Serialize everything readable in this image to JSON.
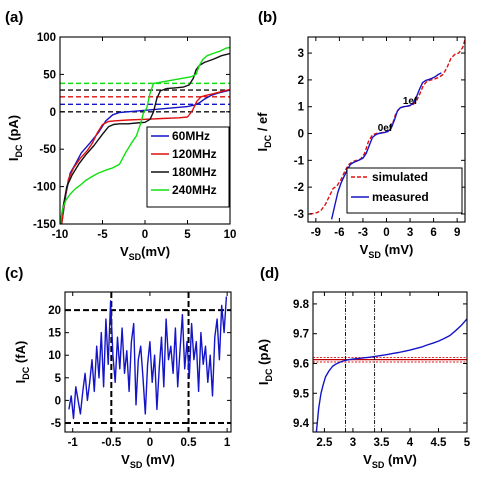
{
  "chart_data": [
    {
      "panel": "(a)",
      "type": "line",
      "xlabel": "V",
      "xlabel_sub": "SD",
      "xlabel_unit": "(mV)",
      "ylabel": "I",
      "ylabel_sub": "DC",
      "ylabel_unit": " (pA)",
      "xlim": [
        -10,
        10
      ],
      "ylim": [
        -150,
        100
      ],
      "xticks": [
        -10,
        -5,
        0,
        5,
        10
      ],
      "yticks": [
        -150,
        -100,
        -50,
        0,
        50,
        100
      ],
      "legend_position": "bottom-right",
      "series": [
        {
          "name": "60MHz",
          "color": "#1414c8",
          "x": [
            -9.8,
            -9.3,
            -8.8,
            -8.2,
            -7.5,
            -6.5,
            -5.5,
            -4.6,
            -3.8,
            -3.0,
            -2.0,
            -1.0,
            0.0,
            1.0,
            2.0,
            3.0,
            4.0,
            5.0,
            5.8,
            6.4,
            7.0,
            7.8,
            8.6,
            9.3,
            10.0
          ],
          "y": [
            -150,
            -110,
            -82,
            -70,
            -55,
            -42,
            -28,
            -12,
            -4,
            -1,
            0,
            1,
            2,
            3,
            4,
            5,
            6,
            7,
            9,
            12,
            17,
            22,
            25,
            27,
            29
          ]
        },
        {
          "name": "120MHz",
          "color": "#e01010",
          "x": [
            -9.8,
            -9.4,
            -9.0,
            -8.4,
            -7.6,
            -6.8,
            -6.2,
            -5.6,
            -5.0,
            -4.3,
            -3.5,
            -2.0,
            0.0,
            2.0,
            4.0,
            5.0,
            5.6,
            6.1,
            6.6,
            7.2,
            8.0,
            9.0,
            10.0
          ],
          "y": [
            -150,
            -115,
            -90,
            -75,
            -62,
            -52,
            -42,
            -28,
            -17,
            -13,
            -12,
            -11,
            -10,
            -9,
            -8,
            -7,
            2,
            14,
            20,
            22,
            24,
            27,
            30
          ]
        },
        {
          "name": "180MHz",
          "color": "#111111",
          "x": [
            -10.0,
            -9.6,
            -9.2,
            -8.6,
            -7.8,
            -7.0,
            -6.0,
            -5.0,
            -4.3,
            -3.7,
            -3.0,
            -2.0,
            -1.0,
            0.0,
            0.6,
            1.0,
            1.4,
            1.8,
            2.5,
            3.5,
            4.5,
            5.2,
            5.7,
            6.0,
            6.4,
            7.0,
            8.0,
            9.0,
            10.0
          ],
          "y": [
            -150,
            -125,
            -100,
            -85,
            -70,
            -58,
            -45,
            -30,
            -20,
            -17,
            -16,
            -16,
            -15,
            -14,
            -10,
            0,
            18,
            28,
            31,
            32,
            33,
            36,
            45,
            56,
            62,
            66,
            70,
            75,
            78
          ]
        },
        {
          "name": "240MHz",
          "color": "#10e010",
          "x": [
            -10.0,
            -9.7,
            -9.3,
            -8.8,
            -8.2,
            -7.6,
            -7.0,
            -6.3,
            -5.5,
            -4.6,
            -3.8,
            -3.0,
            -2.3,
            -1.6,
            -1.0,
            -0.5,
            -0.2,
            0.2,
            0.6,
            1.0,
            2.0,
            3.0,
            4.0,
            5.0,
            5.5,
            6.0,
            6.4,
            6.8,
            7.3,
            8.0,
            8.8,
            9.5,
            10.0
          ],
          "y": [
            -150,
            -130,
            -118,
            -110,
            -103,
            -98,
            -92,
            -87,
            -82,
            -78,
            -75,
            -70,
            -55,
            -42,
            -32,
            -15,
            -2,
            5,
            25,
            38,
            40,
            42,
            44,
            46,
            47,
            50,
            62,
            70,
            75,
            78,
            81,
            85,
            86
          ]
        }
      ],
      "reference_lines": [
        {
          "y": 0,
          "color": "#111111"
        },
        {
          "y": 10,
          "color": "#1414c8"
        },
        {
          "y": 20,
          "color": "#e01010"
        },
        {
          "y": 29,
          "color": "#111111"
        },
        {
          "y": 38,
          "color": "#10e010"
        }
      ]
    },
    {
      "panel": "(b)",
      "type": "line",
      "xlabel": "V",
      "xlabel_sub": "SD",
      "xlabel_unit": " (mV)",
      "ylabel": "I",
      "ylabel_sub": "DC",
      "ylabel_unit": " / ef",
      "xlim": [
        -10,
        10
      ],
      "ylim": [
        -3.3,
        3.6
      ],
      "xticks": [
        -9,
        -6,
        -3,
        0,
        3,
        6,
        9
      ],
      "yticks": [
        -3,
        -2,
        -1,
        0,
        1,
        2,
        3
      ],
      "legend_position": "bottom-right",
      "annotations": [
        {
          "text": "0ef",
          "x": -0.2,
          "y": 0.1
        },
        {
          "text": "1ef",
          "x": 3.0,
          "y": 1.1
        }
      ],
      "series": [
        {
          "name": "simulated",
          "color": "#e01010",
          "dash": "4,2",
          "x": [
            -9.8,
            -9.3,
            -8.8,
            -8.3,
            -7.8,
            -7.3,
            -6.8,
            -6.3,
            -5.8,
            -5.3,
            -4.8,
            -4.3,
            -3.8,
            -3.3,
            -2.8,
            -2.3,
            -1.8,
            -1.3,
            -0.8,
            -0.3,
            0.2,
            0.7,
            1.2,
            1.7,
            2.2,
            2.7,
            3.2,
            3.7,
            4.2,
            4.7,
            5.2,
            5.7,
            6.2,
            6.7,
            7.2,
            7.7,
            8.2,
            8.7,
            9.2,
            9.7,
            10.0
          ],
          "y": [
            -3.0,
            -2.98,
            -2.95,
            -2.85,
            -2.65,
            -2.35,
            -2.05,
            -1.95,
            -1.72,
            -1.4,
            -1.15,
            -1.05,
            -1.0,
            -0.95,
            -0.75,
            -0.3,
            -0.05,
            0.0,
            0.02,
            0.05,
            0.1,
            0.3,
            0.75,
            0.95,
            1.0,
            1.02,
            1.05,
            1.15,
            1.45,
            1.8,
            1.96,
            2.0,
            2.04,
            2.1,
            2.2,
            2.45,
            2.8,
            2.95,
            3.0,
            3.2,
            3.5
          ]
        },
        {
          "name": "measured",
          "color": "#1414c8",
          "dash": "",
          "x": [
            -7.0,
            -6.6,
            -6.2,
            -5.8,
            -5.4,
            -5.0,
            -4.6,
            -4.2,
            -3.8,
            -3.4,
            -3.0,
            -2.6,
            -2.2,
            -1.8,
            -1.4,
            -1.0,
            -0.6,
            -0.2,
            0.2,
            0.6,
            1.0,
            1.4,
            1.8,
            2.2,
            2.6,
            3.0,
            3.4,
            3.8,
            4.2,
            4.6,
            5.0,
            5.4,
            5.8,
            6.2,
            6.6,
            7.0
          ],
          "y": [
            -3.2,
            -2.7,
            -2.2,
            -1.85,
            -1.6,
            -1.35,
            -1.15,
            -1.08,
            -1.03,
            -0.98,
            -0.92,
            -0.75,
            -0.45,
            -0.15,
            -0.05,
            0.0,
            0.02,
            0.04,
            0.08,
            0.2,
            0.5,
            0.85,
            0.97,
            1.0,
            1.02,
            1.05,
            1.12,
            1.35,
            1.65,
            1.9,
            1.98,
            2.02,
            2.06,
            2.12,
            2.2,
            2.26
          ]
        }
      ]
    },
    {
      "panel": "(c)",
      "type": "line",
      "xlabel": "V",
      "xlabel_sub": "SD",
      "xlabel_unit": " (mV)",
      "ylabel": "I",
      "ylabel_sub": "DC",
      "ylabel_unit": " (fA)",
      "xlim": [
        -1.1,
        1.05
      ],
      "ylim": [
        -7,
        24
      ],
      "xticks": [
        -1,
        -0.5,
        0,
        0.5,
        1
      ],
      "xtick_labels": [
        "-1",
        "-0.5",
        "0",
        "0.5",
        "1"
      ],
      "yticks": [
        -5,
        0,
        5,
        10,
        15,
        20
      ],
      "reference_lines_h": [
        20,
        -5
      ],
      "reference_lines_v": [
        -0.5,
        0.5
      ],
      "series": [
        {
          "name": "",
          "color": "#1414c8",
          "x": [
            -1.05,
            -1.02,
            -0.99,
            -0.96,
            -0.93,
            -0.9,
            -0.87,
            -0.84,
            -0.81,
            -0.78,
            -0.75,
            -0.72,
            -0.69,
            -0.66,
            -0.63,
            -0.6,
            -0.57,
            -0.54,
            -0.51,
            -0.48,
            -0.45,
            -0.42,
            -0.39,
            -0.36,
            -0.33,
            -0.3,
            -0.27,
            -0.24,
            -0.21,
            -0.18,
            -0.15,
            -0.12,
            -0.09,
            -0.06,
            -0.03,
            0.0,
            0.03,
            0.06,
            0.09,
            0.12,
            0.15,
            0.18,
            0.21,
            0.24,
            0.27,
            0.3,
            0.33,
            0.36,
            0.39,
            0.42,
            0.45,
            0.48,
            0.51,
            0.54,
            0.57,
            0.6,
            0.63,
            0.66,
            0.69,
            0.72,
            0.75,
            0.78,
            0.81,
            0.84,
            0.87,
            0.9,
            0.93,
            0.96,
            0.99
          ],
          "y": [
            -2,
            1,
            -4,
            3,
            0,
            -3,
            2,
            6,
            0,
            4,
            9,
            2,
            12,
            5,
            15,
            3,
            18,
            8,
            22,
            10,
            4,
            14,
            7,
            16,
            6,
            11,
            2,
            13,
            17,
            -1,
            9,
            12,
            5,
            -3,
            8,
            13,
            4,
            10,
            -2,
            7,
            14,
            3,
            18,
            9,
            12,
            6,
            16,
            3,
            11,
            19,
            7,
            13,
            5,
            17,
            9,
            13,
            2,
            15,
            8,
            12,
            4,
            10,
            1,
            14,
            18,
            9,
            21,
            15,
            23
          ]
        }
      ]
    },
    {
      "panel": "(d)",
      "type": "line",
      "xlabel": "V",
      "xlabel_sub": "SD",
      "xlabel_unit": " (mV)",
      "ylabel": "I",
      "ylabel_sub": "DC",
      "ylabel_unit": " (pA)",
      "xlim": [
        2.3,
        5.0
      ],
      "ylim": [
        9.37,
        9.84
      ],
      "xticks": [
        2.5,
        3,
        3.5,
        4,
        4.5,
        5
      ],
      "xtick_labels": [
        "2.5",
        "3",
        "3.5",
        "4",
        "4.5",
        "5"
      ],
      "yticks": [
        9.4,
        9.5,
        9.6,
        9.7,
        9.8
      ],
      "ytick_labels": [
        "9.4",
        "9.5",
        "9.6",
        "9.7",
        "9.8"
      ],
      "reference_lines_h": [
        9.605,
        9.62
      ],
      "reference_line_h_main": 9.613,
      "reference_lines_v": [
        2.87,
        3.38
      ],
      "series": [
        {
          "name": "",
          "color": "#1414c8",
          "x": [
            2.36,
            2.4,
            2.44,
            2.48,
            2.52,
            2.58,
            2.64,
            2.7,
            2.78,
            2.86,
            2.94,
            3.02,
            3.1,
            3.2,
            3.3,
            3.4,
            3.5,
            3.6,
            3.7,
            3.8,
            3.9,
            4.0,
            4.1,
            4.2,
            4.3,
            4.4,
            4.5,
            4.6,
            4.7,
            4.8,
            4.9,
            5.0
          ],
          "y": [
            9.37,
            9.45,
            9.5,
            9.53,
            9.555,
            9.575,
            9.59,
            9.598,
            9.605,
            9.61,
            9.613,
            9.615,
            9.617,
            9.619,
            9.621,
            9.624,
            9.627,
            9.63,
            9.634,
            9.637,
            9.641,
            9.645,
            9.65,
            9.655,
            9.662,
            9.668,
            9.675,
            9.684,
            9.694,
            9.71,
            9.728,
            9.75
          ]
        }
      ]
    }
  ]
}
